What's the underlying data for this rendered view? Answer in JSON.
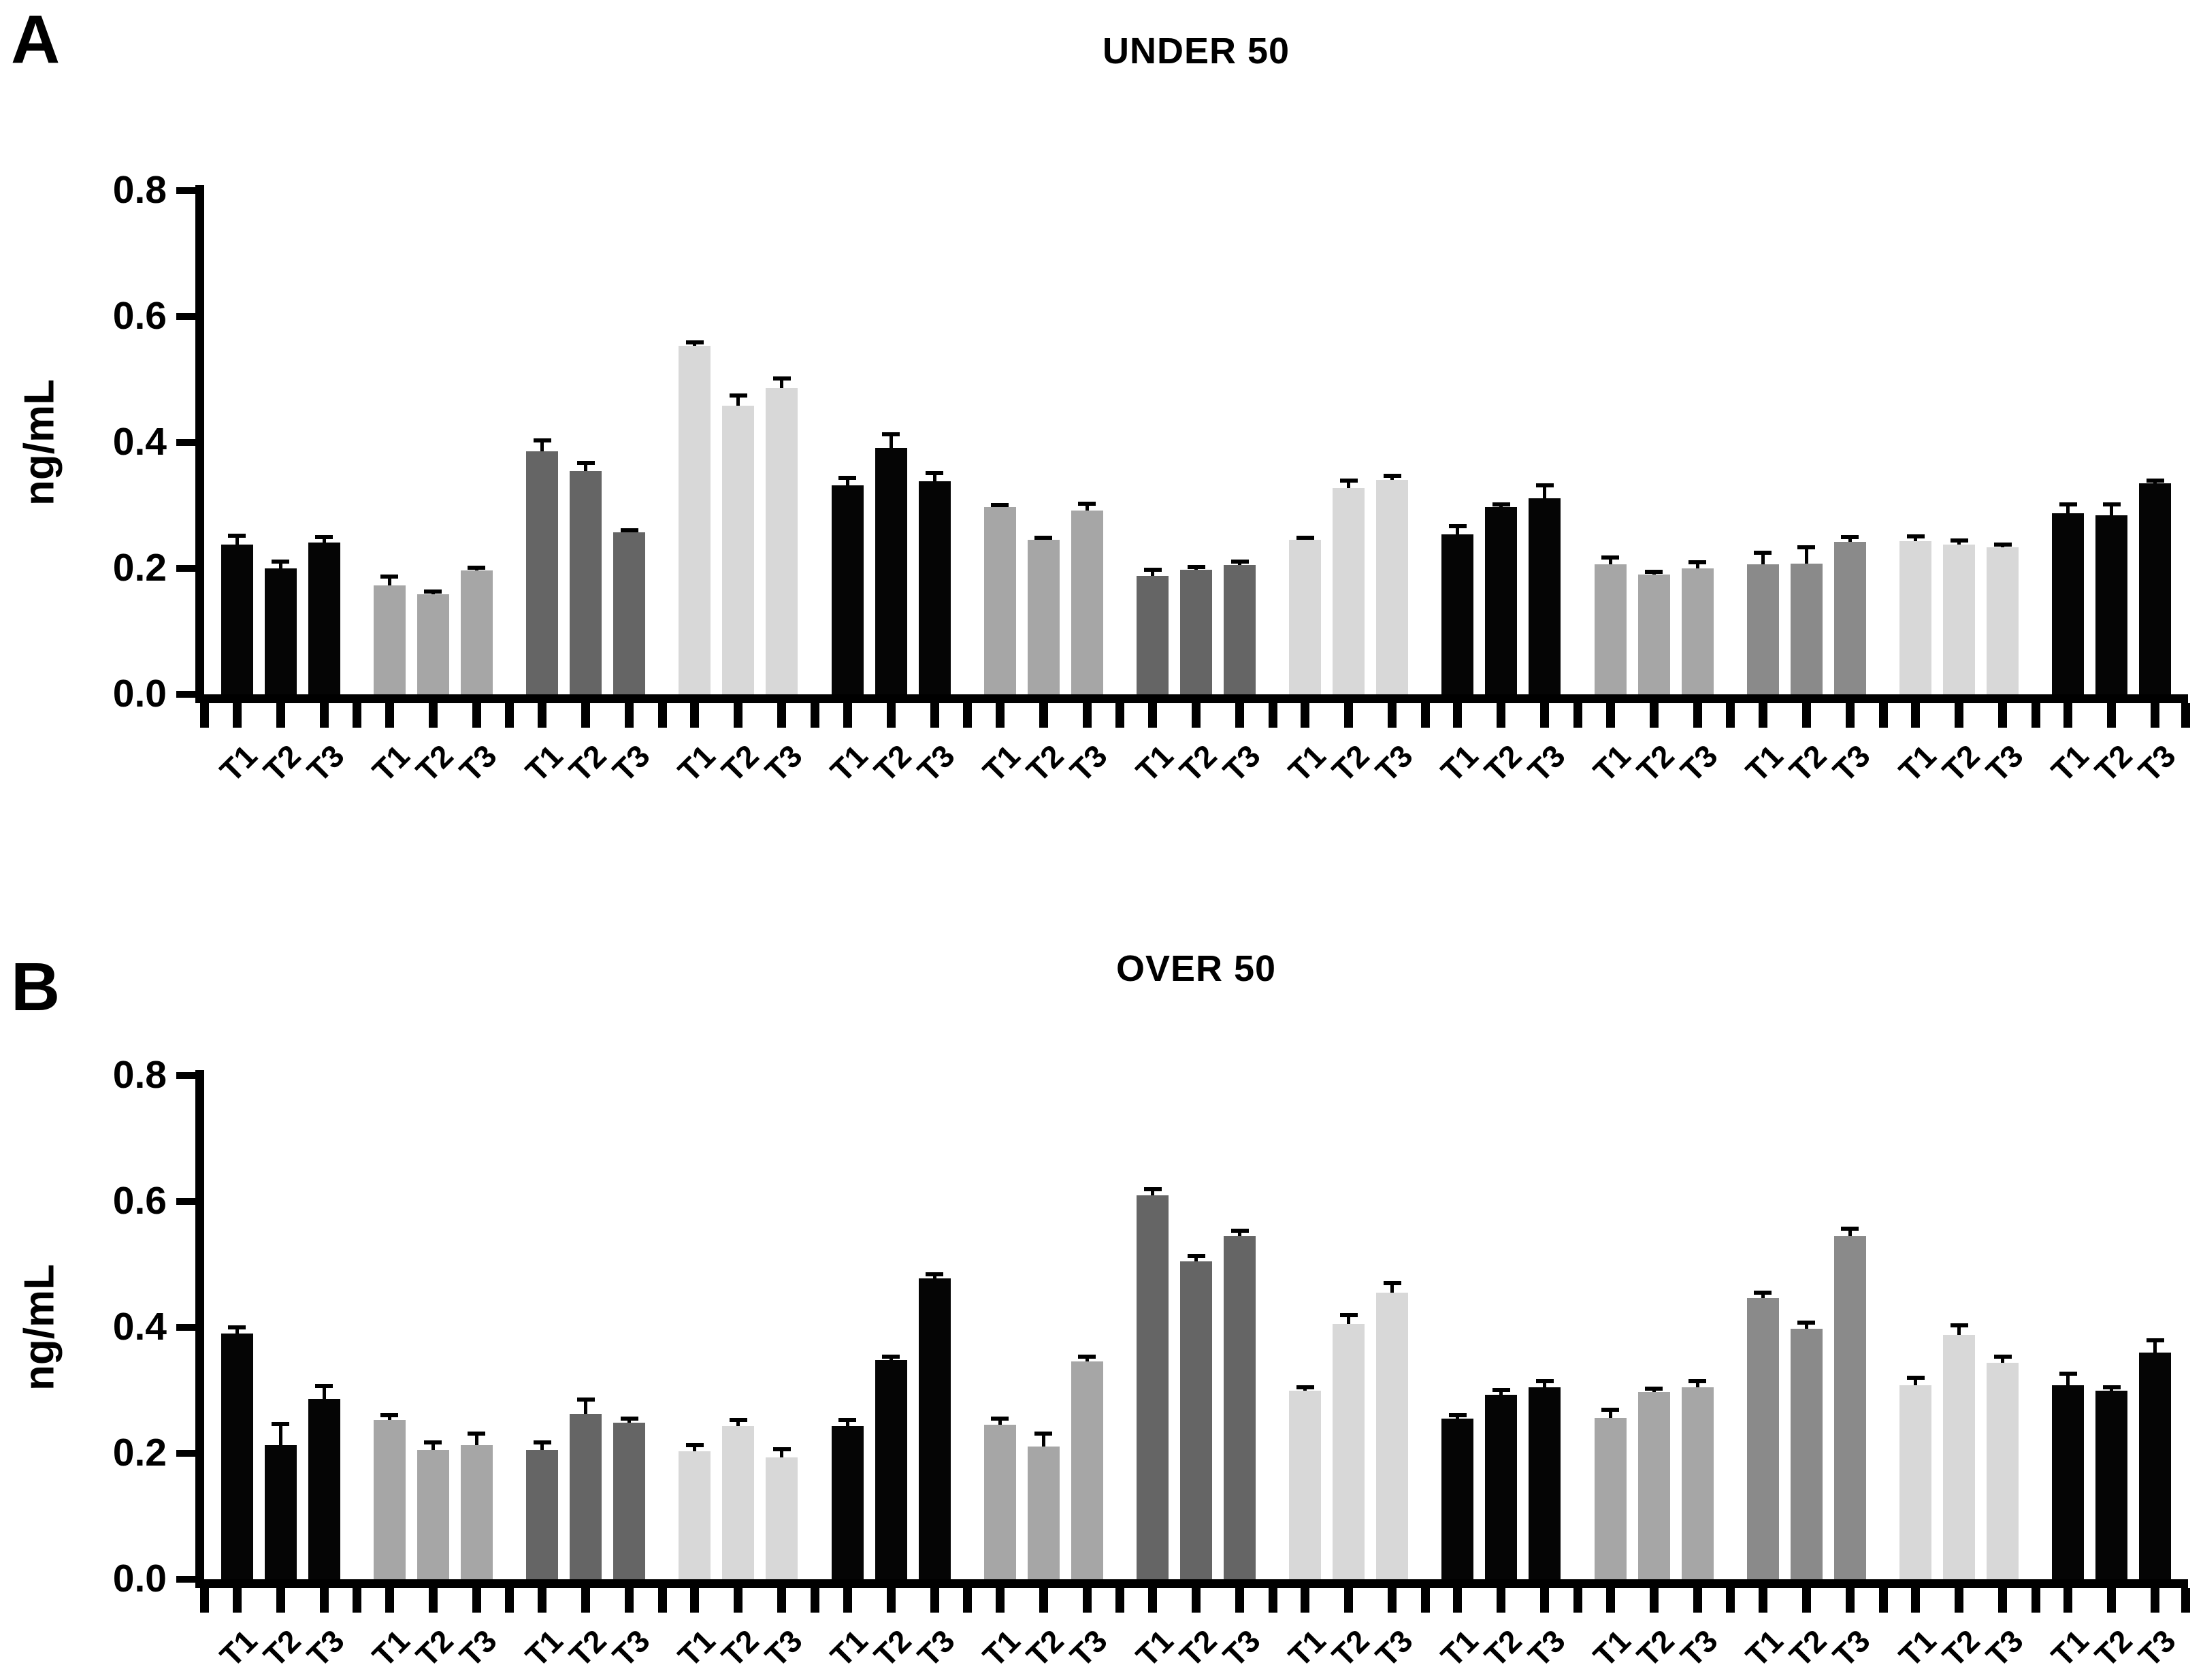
{
  "figure": {
    "panels": [
      {
        "letter": "A"
      },
      {
        "letter": "B"
      }
    ]
  },
  "colors": {
    "black": "#050505",
    "gray": "#a6a6a6",
    "dark_gray": "#656565",
    "light_gray": "#d8d8d8",
    "mid_dark_gray": "#8a8a8a",
    "axis": "#000000",
    "background": "#ffffff"
  },
  "chart_data": [
    {
      "type": "bar",
      "panel": "A",
      "title": "UNDER 50",
      "xlabel": "",
      "ylabel": "ng/mL",
      "ylim": [
        0,
        0.8
      ],
      "yticks": [
        "0.0",
        "0.2",
        "0.4",
        "0.6",
        "0.8"
      ],
      "grid": false,
      "legend": "none",
      "bar_labels": [
        "T1",
        "T2",
        "T3"
      ],
      "error_bars": "sem, upper only",
      "groups": [
        {
          "shade": "black",
          "color": "#050505",
          "values": [
            0.238,
            0.2,
            0.241
          ],
          "errors": [
            0.014,
            0.011,
            0.009
          ]
        },
        {
          "shade": "gray",
          "color": "#a6a6a6",
          "values": [
            0.173,
            0.159,
            0.197
          ],
          "errors": [
            0.014,
            0.004,
            0.004
          ]
        },
        {
          "shade": "dark_gray",
          "color": "#656565",
          "values": [
            0.386,
            0.355,
            0.257
          ],
          "errors": [
            0.017,
            0.013,
            0.004
          ]
        },
        {
          "shade": "light_gray",
          "color": "#d8d8d8",
          "values": [
            0.554,
            0.458,
            0.486
          ],
          "errors": [
            0.005,
            0.017,
            0.016
          ]
        },
        {
          "shade": "black",
          "color": "#050505",
          "values": [
            0.332,
            0.391,
            0.338
          ],
          "errors": [
            0.012,
            0.022,
            0.013
          ]
        },
        {
          "shade": "gray",
          "color": "#a6a6a6",
          "values": [
            0.297,
            0.245,
            0.292
          ],
          "errors": [
            0.004,
            0.004,
            0.011
          ]
        },
        {
          "shade": "dark_gray",
          "color": "#656565",
          "values": [
            0.188,
            0.198,
            0.205
          ],
          "errors": [
            0.01,
            0.004,
            0.006
          ]
        },
        {
          "shade": "light_gray",
          "color": "#d8d8d8",
          "values": [
            0.245,
            0.328,
            0.341
          ],
          "errors": [
            0.004,
            0.012,
            0.006
          ]
        },
        {
          "shade": "black",
          "color": "#050505",
          "values": [
            0.254,
            0.297,
            0.311
          ],
          "errors": [
            0.013,
            0.005,
            0.021
          ]
        },
        {
          "shade": "gray",
          "color": "#a6a6a6",
          "values": [
            0.207,
            0.19,
            0.2
          ],
          "errors": [
            0.01,
            0.005,
            0.01
          ]
        },
        {
          "shade": "mid_dark_gray",
          "color": "#8a8a8a",
          "values": [
            0.207,
            0.208,
            0.242
          ],
          "errors": [
            0.018,
            0.025,
            0.008
          ]
        },
        {
          "shade": "light_gray",
          "color": "#d8d8d8",
          "values": [
            0.243,
            0.238,
            0.234
          ],
          "errors": [
            0.008,
            0.006,
            0.004
          ]
        },
        {
          "shade": "black",
          "color": "#050505",
          "values": [
            0.288,
            0.284,
            0.335
          ],
          "errors": [
            0.014,
            0.018,
            0.005
          ]
        }
      ]
    },
    {
      "type": "bar",
      "panel": "B",
      "title": "OVER 50",
      "xlabel": "",
      "ylabel": "ng/mL",
      "ylim": [
        0,
        0.8
      ],
      "yticks": [
        "0.0",
        "0.2",
        "0.4",
        "0.6",
        "0.8"
      ],
      "grid": false,
      "legend": "none",
      "bar_labels": [
        "T1",
        "T2",
        "T3"
      ],
      "error_bars": "sem, upper only",
      "groups": [
        {
          "shade": "black",
          "color": "#050505",
          "values": [
            0.39,
            0.213,
            0.287
          ],
          "errors": [
            0.01,
            0.033,
            0.02
          ]
        },
        {
          "shade": "gray",
          "color": "#a6a6a6",
          "values": [
            0.253,
            0.205,
            0.213
          ],
          "errors": [
            0.008,
            0.012,
            0.018
          ]
        },
        {
          "shade": "dark_gray",
          "color": "#656565",
          "values": [
            0.205,
            0.263,
            0.249
          ],
          "errors": [
            0.012,
            0.022,
            0.006
          ]
        },
        {
          "shade": "light_gray",
          "color": "#d8d8d8",
          "values": [
            0.203,
            0.243,
            0.194
          ],
          "errors": [
            0.01,
            0.01,
            0.012
          ]
        },
        {
          "shade": "black",
          "color": "#050505",
          "values": [
            0.243,
            0.348,
            0.478
          ],
          "errors": [
            0.01,
            0.006,
            0.006
          ]
        },
        {
          "shade": "gray",
          "color": "#a6a6a6",
          "values": [
            0.245,
            0.211,
            0.346
          ],
          "errors": [
            0.01,
            0.02,
            0.008
          ]
        },
        {
          "shade": "dark_gray",
          "color": "#656565",
          "values": [
            0.61,
            0.505,
            0.545
          ],
          "errors": [
            0.01,
            0.008,
            0.008
          ]
        },
        {
          "shade": "light_gray",
          "color": "#d8d8d8",
          "values": [
            0.3,
            0.405,
            0.455
          ],
          "errors": [
            0.005,
            0.014,
            0.015
          ]
        },
        {
          "shade": "black",
          "color": "#050505",
          "values": [
            0.255,
            0.293,
            0.305
          ],
          "errors": [
            0.006,
            0.008,
            0.01
          ]
        },
        {
          "shade": "gray",
          "color": "#a6a6a6",
          "values": [
            0.256,
            0.297,
            0.305
          ],
          "errors": [
            0.013,
            0.006,
            0.01
          ]
        },
        {
          "shade": "mid_dark_gray",
          "color": "#8a8a8a",
          "values": [
            0.447,
            0.398,
            0.545
          ],
          "errors": [
            0.008,
            0.01,
            0.012
          ]
        },
        {
          "shade": "light_gray",
          "color": "#d8d8d8",
          "values": [
            0.308,
            0.388,
            0.344
          ],
          "errors": [
            0.012,
            0.015,
            0.01
          ]
        },
        {
          "shade": "black",
          "color": "#050505",
          "values": [
            0.308,
            0.3,
            0.36
          ],
          "errors": [
            0.018,
            0.005,
            0.02
          ]
        }
      ]
    }
  ]
}
